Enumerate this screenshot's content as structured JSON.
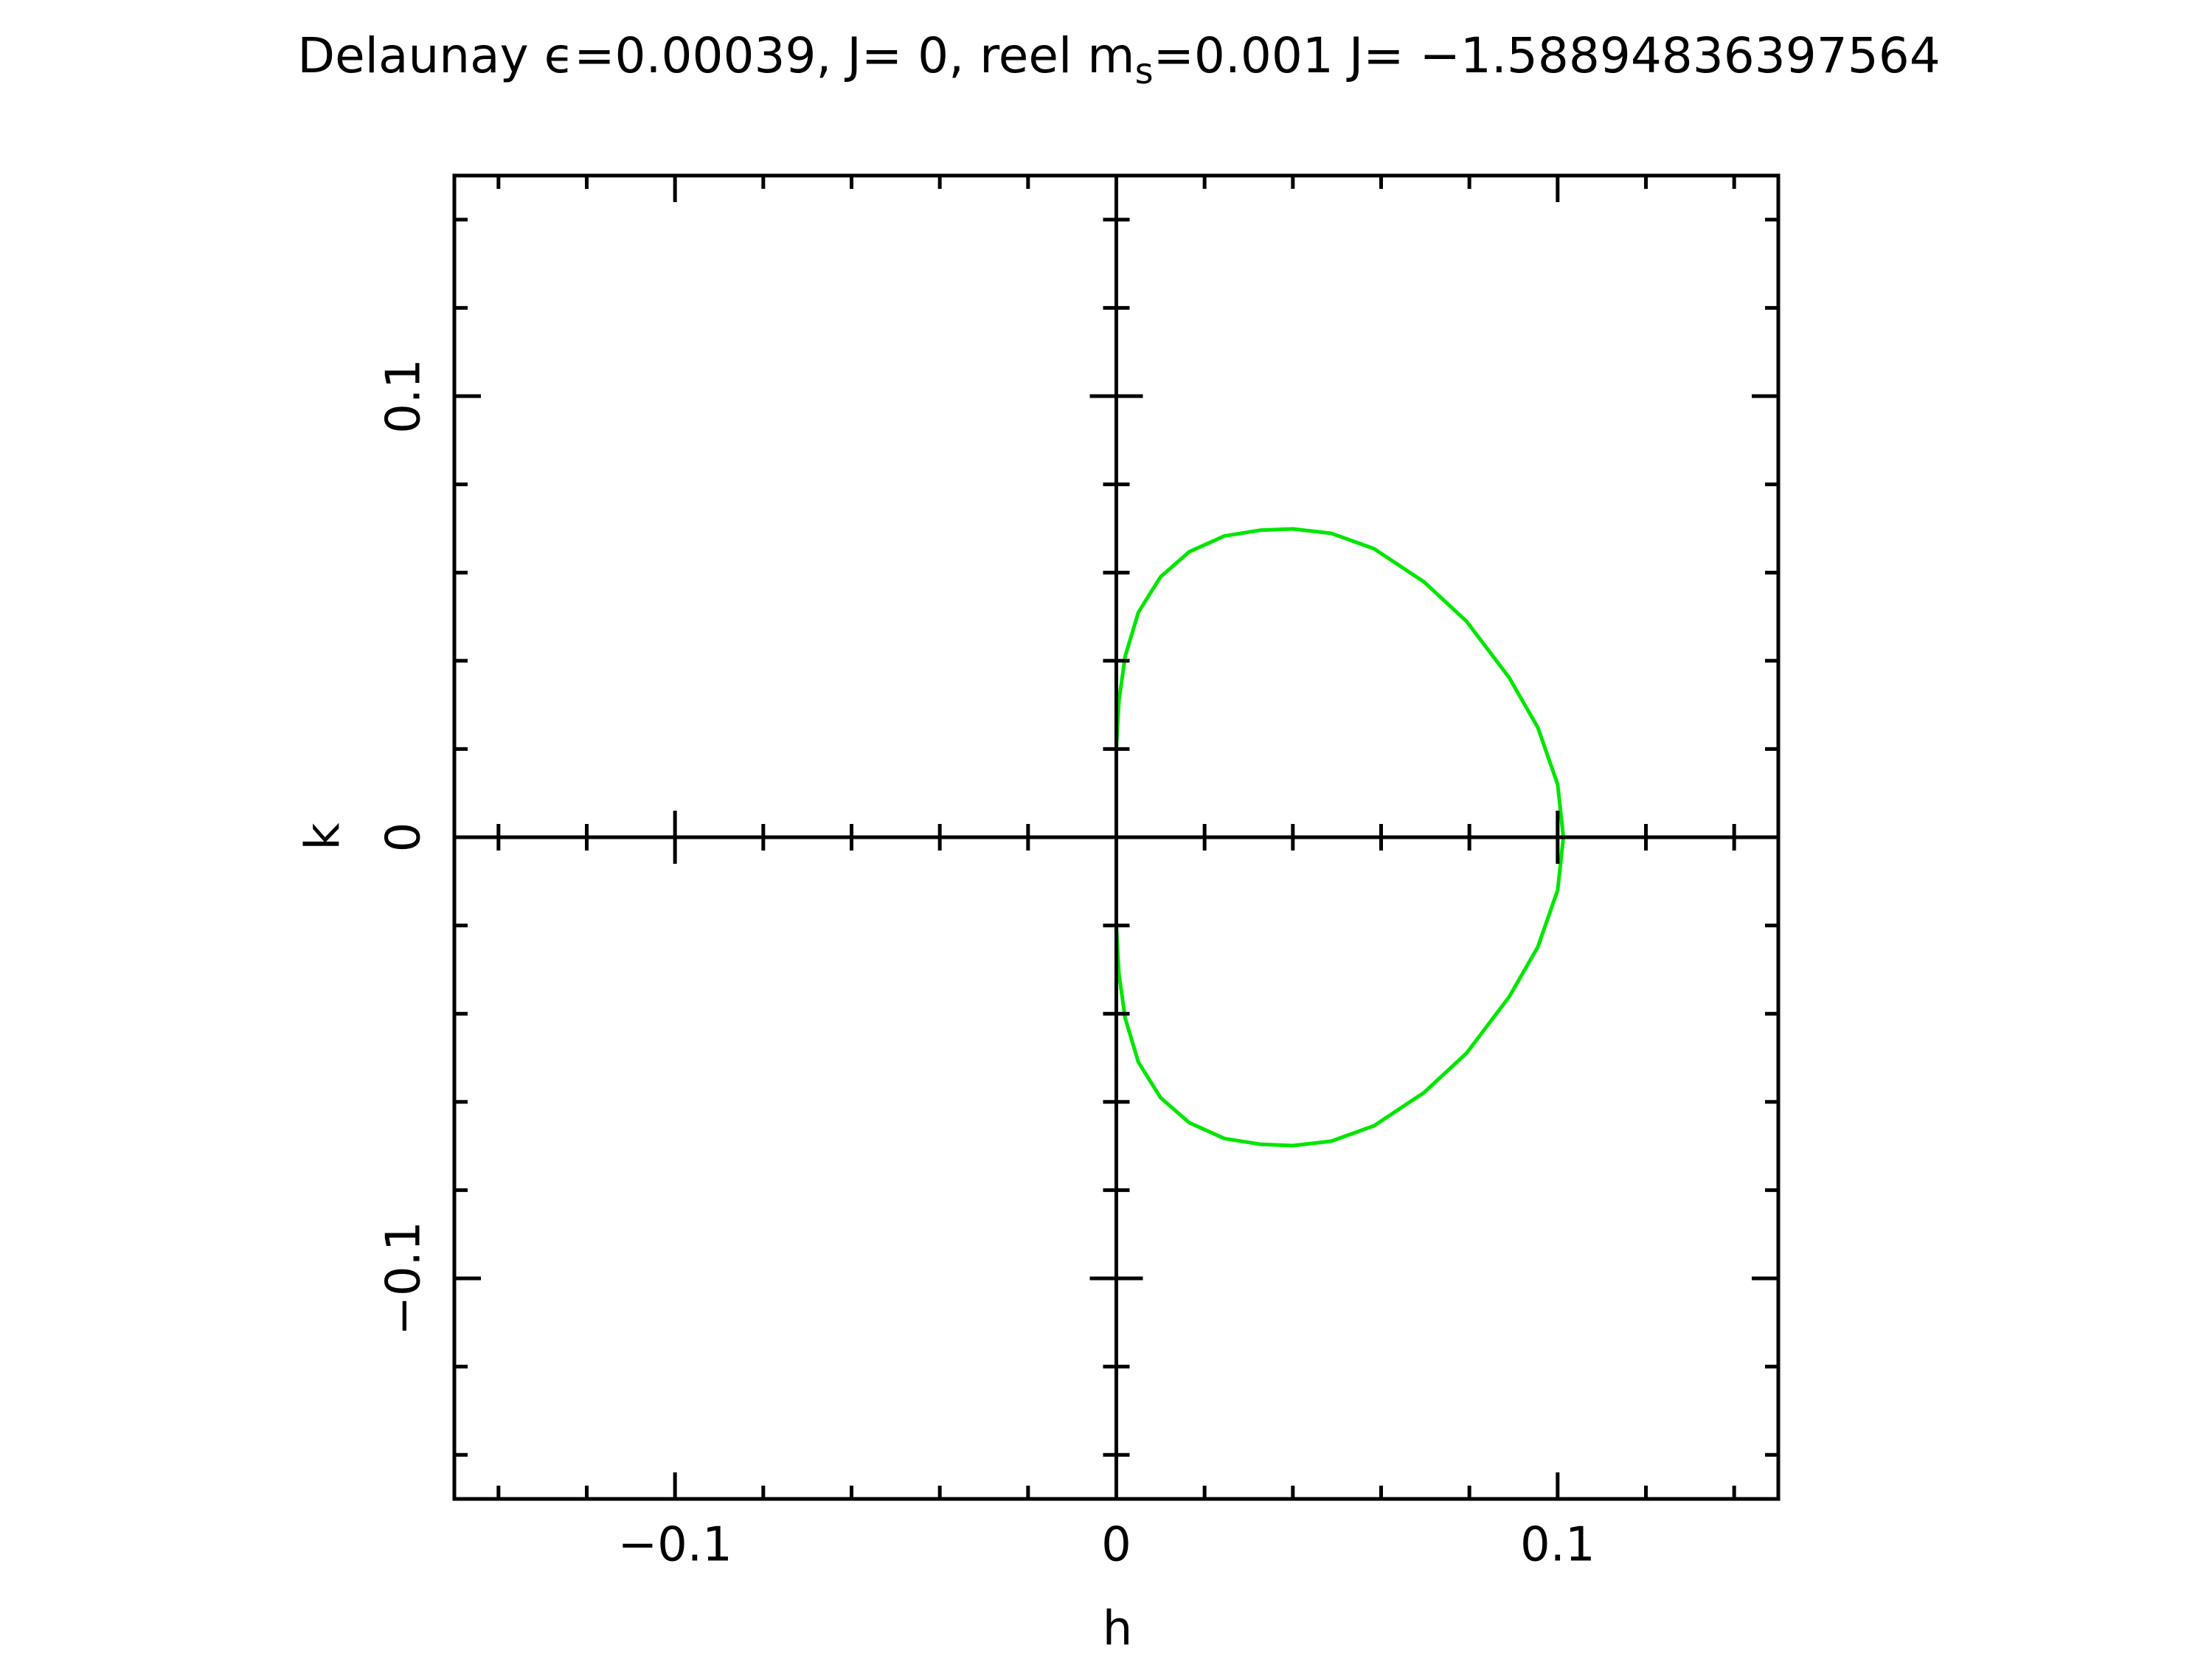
{
  "chart_data": {
    "type": "line",
    "title": [
      "Delaunay ϵ=0.00039, J= 0, reel m",
      "s",
      "=0.001 J= −1.58894836397564"
    ],
    "x_label": "h",
    "y_label": "k",
    "xlim": [
      -0.15,
      0.15
    ],
    "ylim": [
      -0.15,
      0.15
    ],
    "xticks": [
      {
        "value": -0.1,
        "label": "−0.1"
      },
      0,
      0.1
    ],
    "yticks": [
      {
        "value": -0.1,
        "label": "−0.1"
      },
      0,
      0.1
    ],
    "xminor_ticks": [
      -0.14,
      -0.12,
      -0.08,
      -0.06,
      -0.04,
      -0.02,
      0.02,
      0.04,
      0.06,
      0.08,
      0.12,
      0.14
    ],
    "yminor_ticks": [
      -0.14,
      -0.12,
      -0.08,
      -0.06,
      -0.04,
      -0.02,
      0.02,
      0.04,
      0.06,
      0.08,
      0.12,
      0.14
    ],
    "zero_axes": true,
    "series": [
      {
        "color": "#00e600",
        "x": [
          0,
          0,
          0.0006,
          0.002,
          0.005,
          0.01,
          0.0165,
          0.0245,
          0.0326,
          0.04,
          0.0487,
          0.0584,
          0.0697,
          0.0794,
          0.089,
          0.0955,
          0.1,
          0.1013,
          0.1,
          0.0955,
          0.089,
          0.0794,
          0.0697,
          0.0584,
          0.0487,
          0.04,
          0.0326,
          0.0245,
          0.0165,
          0.01,
          0.005,
          0.002,
          0.0006,
          0,
          0
        ],
        "values": [
          0,
          0.02,
          0.031,
          0.041,
          0.051,
          0.059,
          0.0647,
          0.0683,
          0.0696,
          0.0699,
          0.0689,
          0.0654,
          0.0579,
          0.0489,
          0.0362,
          0.0249,
          0.012,
          0,
          -0.012,
          -0.0249,
          -0.0362,
          -0.0489,
          -0.0579,
          -0.0654,
          -0.0689,
          -0.0699,
          -0.0696,
          -0.0683,
          -0.0647,
          -0.059,
          -0.051,
          -0.041,
          -0.031,
          -0.02,
          0
        ]
      }
    ]
  }
}
